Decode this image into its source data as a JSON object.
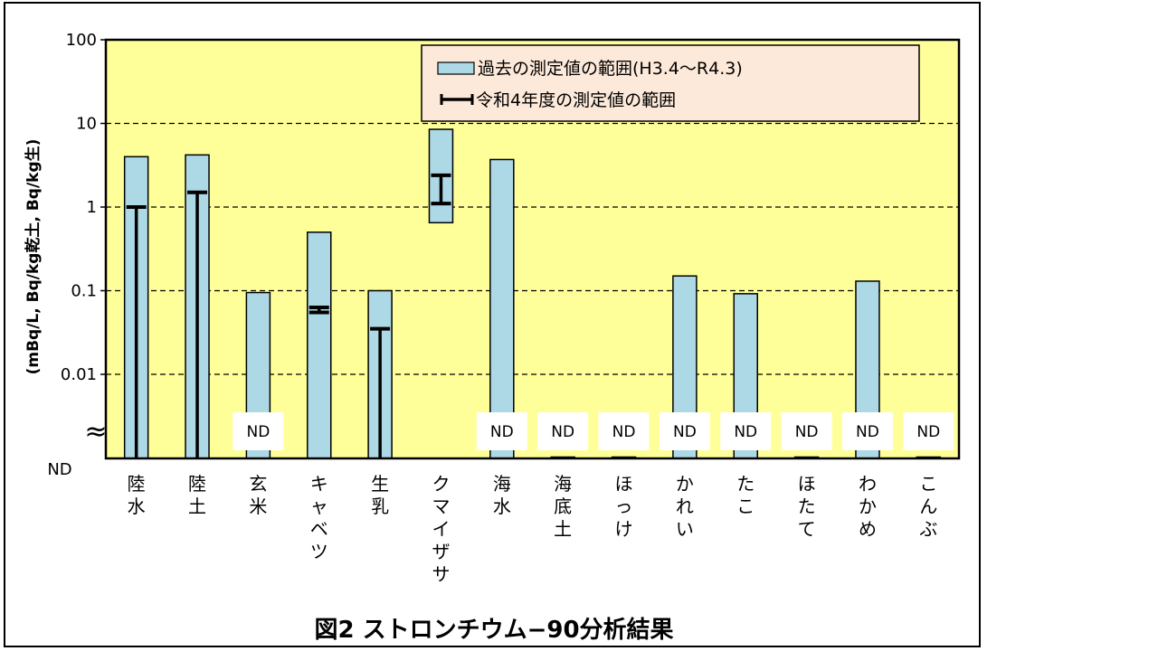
{
  "chart_data": {
    "type": "bar",
    "title": "図2 ストロンチウム−90分析結果",
    "ylabel": "(mBq/L, Bq/kg乾土, Bq/kg生)",
    "y_scale": "log",
    "ylim": [
      0.001,
      100
    ],
    "y_ticks": [
      100,
      10,
      1,
      0.1,
      0.01
    ],
    "y_tick_labels": [
      "100",
      "10",
      "1",
      "0.1",
      "0.01"
    ],
    "nd_label": "ND",
    "axis_break": "≈",
    "categories": [
      "陸水",
      "陸土",
      "玄米",
      "キャベツ",
      "生乳",
      "クマイザサ",
      "海水",
      "海底土",
      "ほっけ",
      "かれい",
      "たこ",
      "ほたて",
      "わかめ",
      "こんぶ"
    ],
    "series": [
      {
        "name": "過去の測定値の範囲(H3.4〜R4.3)",
        "color": "#add8e6",
        "ranges": [
          {
            "low": "ND",
            "high": 4.0
          },
          {
            "low": "ND",
            "high": 4.2
          },
          {
            "low": "ND",
            "high": 0.095
          },
          {
            "low": "ND",
            "high": 0.5
          },
          {
            "low": "ND",
            "high": 0.1
          },
          {
            "low": 0.65,
            "high": 8.5
          },
          {
            "low": "ND",
            "high": 3.7
          },
          {
            "low": "ND",
            "high": "ND"
          },
          {
            "low": "ND",
            "high": "ND"
          },
          {
            "low": "ND",
            "high": 0.15
          },
          {
            "low": "ND",
            "high": 0.092
          },
          {
            "low": "ND",
            "high": "ND"
          },
          {
            "low": "ND",
            "high": 0.13
          },
          {
            "low": "ND",
            "high": "ND"
          }
        ]
      },
      {
        "name": "令和4年度の測定値の範囲",
        "color": "#000000",
        "ranges": [
          {
            "low": "ND",
            "high": 1.0
          },
          {
            "low": "ND",
            "high": 1.5
          },
          {
            "low": "ND",
            "high": "ND"
          },
          {
            "low": 0.055,
            "high": 0.063
          },
          {
            "low": "ND",
            "high": 0.035
          },
          {
            "low": 1.1,
            "high": 2.4
          },
          {
            "low": "ND",
            "high": "ND"
          },
          {
            "low": "ND",
            "high": "ND"
          },
          {
            "low": "ND",
            "high": "ND"
          },
          {
            "low": "ND",
            "high": "ND"
          },
          {
            "low": "ND",
            "high": "ND"
          },
          {
            "low": "ND",
            "high": "ND"
          },
          {
            "low": "ND",
            "high": "ND"
          },
          {
            "low": "ND",
            "high": "ND"
          }
        ]
      }
    ],
    "nd_boxes": [
      false,
      false,
      true,
      false,
      false,
      false,
      true,
      true,
      true,
      true,
      true,
      true,
      true,
      true
    ],
    "legend_position": "top-right",
    "grid": "horizontal-dashed",
    "colors": {
      "plot_background": "#ffff99",
      "legend_background": "#fde9d9",
      "nd_box": "#ffffff"
    }
  }
}
